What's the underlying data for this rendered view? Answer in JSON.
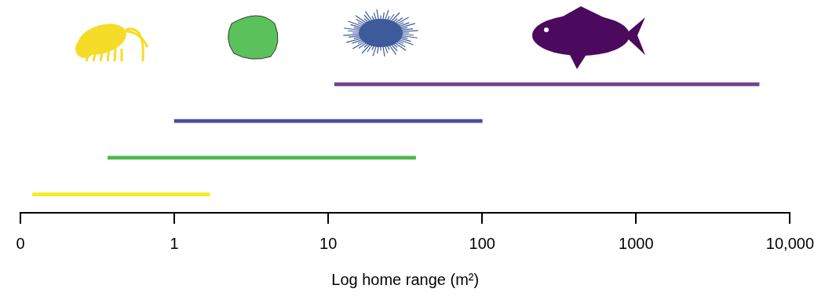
{
  "chart_data": {
    "type": "bar",
    "orientation": "horizontal",
    "log": "x",
    "x_label": "Log home range (m²)",
    "categories": [
      null,
      null,
      null,
      null
    ],
    "values": [
      [
        11,
        6300
      ],
      [
        1,
        100
      ],
      [
        0.37,
        37
      ],
      [
        0.12,
        1.7
      ]
    ],
    "colors": [
      "#74428f",
      "#4a4aa0",
      "#4cb84c",
      "#f4ec28"
    ],
    "xlim": [
      0.1,
      10000
    ],
    "xticks": [
      {
        "value": 0.1,
        "label": "0"
      },
      1,
      10,
      100,
      1000,
      {
        "value": 10000,
        "label": "10,000"
      }
    ],
    "grid": false,
    "tick_labels": "x"
  }
}
